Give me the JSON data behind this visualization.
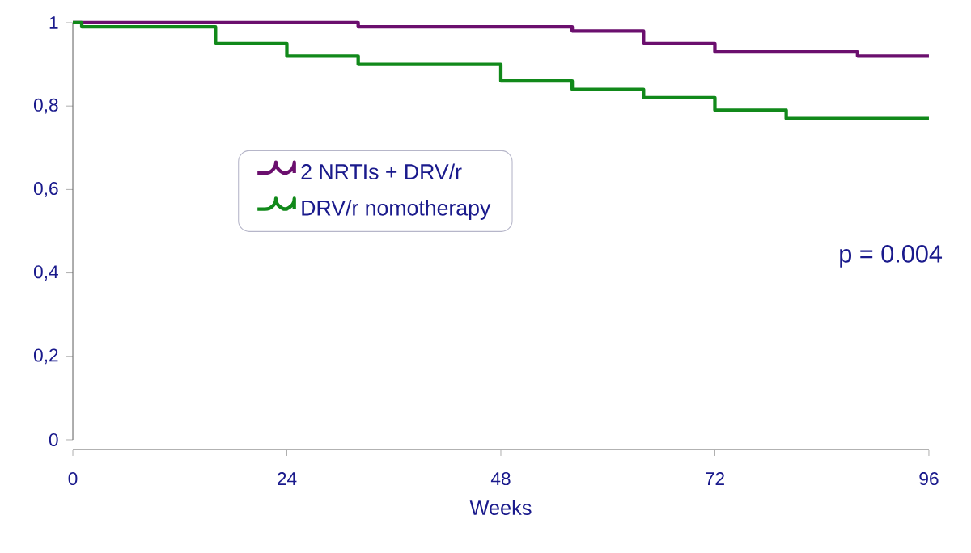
{
  "chart_data": {
    "type": "step",
    "xlabel": "Weeks",
    "series": [
      {
        "name": "2 NRTIs + DRV/r",
        "color": "#6b0f6e",
        "x": [
          0,
          32,
          56,
          64,
          72,
          88,
          96
        ],
        "values": [
          1,
          0.99,
          0.98,
          0.95,
          0.93,
          0.92,
          0.92
        ]
      },
      {
        "name": "DRV/r nomotherapy",
        "color": "#11891a",
        "x": [
          0,
          1,
          16,
          24,
          32,
          48,
          56,
          64,
          72,
          80,
          96
        ],
        "values": [
          1,
          0.99,
          0.95,
          0.92,
          0.9,
          0.86,
          0.84,
          0.82,
          0.79,
          0.77,
          0.77
        ]
      }
    ],
    "xlim": [
      0,
      96
    ],
    "ylim": [
      0,
      1
    ],
    "xticks": [
      0,
      24,
      48,
      72,
      96
    ],
    "yticks": [
      0,
      {
        "value": 0.2,
        "label": "0,2"
      },
      {
        "value": 0.4,
        "label": "0,4"
      },
      {
        "value": 0.6,
        "label": "0,6"
      },
      {
        "value": 0.8,
        "label": "0,8"
      },
      1
    ],
    "annotations": [
      "p = 0.004"
    ],
    "legend": "left",
    "grid": false,
    "marker": "none",
    "line_style": "solid"
  }
}
